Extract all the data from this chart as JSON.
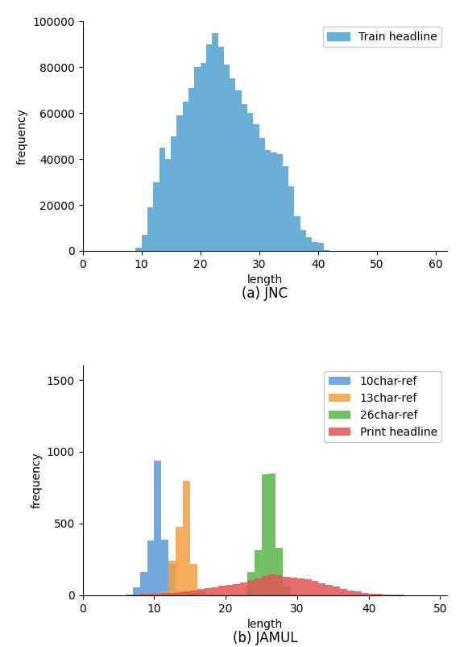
{
  "jnc_color": "#6baed6",
  "jnc_xlim": [
    0,
    62
  ],
  "jnc_ylim": [
    0,
    100000
  ],
  "jnc_yticks": [
    0,
    20000,
    40000,
    60000,
    80000,
    100000
  ],
  "jnc_xticks": [
    0,
    10,
    20,
    30,
    40,
    50,
    60
  ],
  "jnc_xlabel": "length",
  "jnc_ylabel": "frequency",
  "jnc_legend": "Train headline",
  "jnc_caption": "(a) JNC",
  "jnc_bins_edges": [
    9,
    10,
    11,
    12,
    13,
    14,
    15,
    16,
    17,
    18,
    19,
    20,
    21,
    22,
    23,
    24,
    25,
    26,
    27,
    28,
    29,
    30,
    31,
    32,
    33,
    34,
    35,
    36,
    37,
    38,
    39,
    40,
    41
  ],
  "jnc_counts": [
    1500,
    7000,
    19000,
    30000,
    45000,
    40000,
    50000,
    59000,
    65000,
    71000,
    80000,
    82000,
    90000,
    95000,
    89000,
    81000,
    75000,
    70000,
    64000,
    60000,
    55000,
    49000,
    44000,
    43000,
    42000,
    37000,
    28000,
    15000,
    9000,
    6000,
    4000,
    3500,
    500
  ],
  "jamul_xlim": [
    0,
    51
  ],
  "jamul_ylim": [
    0,
    1600
  ],
  "jamul_yticks": [
    0,
    500,
    1000,
    1500
  ],
  "jamul_xticks": [
    0,
    10,
    20,
    30,
    40,
    50
  ],
  "jamul_xlabel": "length",
  "jamul_ylabel": "frequency",
  "jamul_caption": "(b) JAMUL",
  "series": [
    {
      "label": "10char-ref",
      "color": "#5b9bd5",
      "bins_edges": [
        7,
        8,
        9,
        10,
        11,
        12,
        13
      ],
      "counts": [
        55,
        165,
        380,
        940,
        390,
        220,
        25
      ]
    },
    {
      "label": "13char-ref",
      "color": "#f4a040",
      "bins_edges": [
        10,
        11,
        12,
        13,
        14,
        15,
        16
      ],
      "counts": [
        10,
        25,
        240,
        480,
        800,
        220,
        30
      ]
    },
    {
      "label": "26char-ref",
      "color": "#5ab54b",
      "bins_edges": [
        23,
        24,
        25,
        26,
        27,
        28,
        29
      ],
      "counts": [
        160,
        315,
        840,
        850,
        330,
        60,
        10
      ]
    },
    {
      "label": "Print headline",
      "color": "#e05555",
      "bins_edges": [
        5,
        6,
        7,
        8,
        9,
        10,
        11,
        12,
        13,
        14,
        15,
        16,
        17,
        18,
        19,
        20,
        21,
        22,
        23,
        24,
        25,
        26,
        27,
        28,
        29,
        30,
        31,
        32,
        33,
        34,
        35,
        36,
        37,
        38,
        39,
        40,
        41,
        42,
        43,
        44,
        45,
        46,
        47
      ],
      "counts": [
        2,
        3,
        5,
        8,
        10,
        12,
        15,
        18,
        22,
        28,
        35,
        42,
        50,
        58,
        65,
        72,
        80,
        90,
        105,
        120,
        135,
        145,
        140,
        130,
        125,
        115,
        110,
        100,
        85,
        70,
        60,
        45,
        35,
        25,
        18,
        12,
        8,
        6,
        4,
        3,
        2,
        1,
        1
      ]
    }
  ]
}
